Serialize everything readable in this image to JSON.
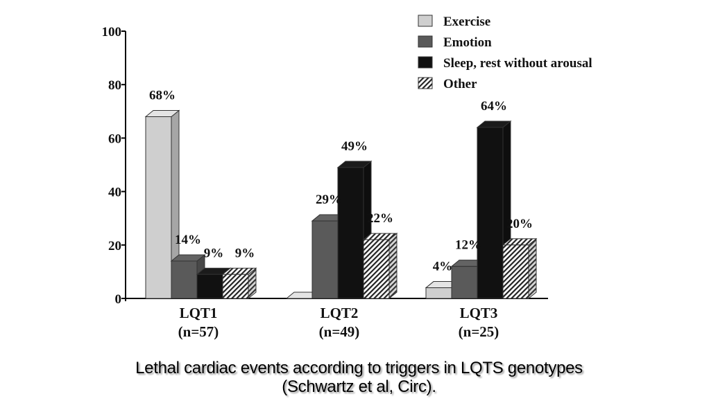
{
  "chart_data": {
    "type": "bar",
    "style": "3d-clustered",
    "title": "",
    "xlabel": "",
    "ylabel": "",
    "ylim": [
      0,
      100
    ],
    "yticks": [
      0,
      20,
      40,
      60,
      80,
      100
    ],
    "grid": false,
    "legend_position": "top-right",
    "categories": [
      {
        "name": "LQT1",
        "n_label": "(n=57)"
      },
      {
        "name": "LQT2",
        "n_label": "(n=49)"
      },
      {
        "name": "LQT3",
        "n_label": "(n=25)"
      }
    ],
    "series": [
      {
        "name": "Exercise",
        "values": [
          68,
          0,
          4
        ],
        "labels": [
          "68%",
          "",
          "4%"
        ],
        "color": "#cfcfcf",
        "pattern": "solid"
      },
      {
        "name": "Emotion",
        "values": [
          14,
          29,
          12
        ],
        "labels": [
          "14%",
          "29%",
          "12%"
        ],
        "color": "#5a5a5a",
        "pattern": "solid"
      },
      {
        "name": "Sleep, rest without arousal",
        "values": [
          9,
          49,
          64
        ],
        "labels": [
          "9%",
          "49%",
          "64%"
        ],
        "color": "#111111",
        "pattern": "solid"
      },
      {
        "name": "Other",
        "values": [
          9,
          22,
          20
        ],
        "labels": [
          "9%",
          "22%",
          "20%"
        ],
        "color": "#ffffff",
        "pattern": "diagonal-hatch"
      }
    ]
  },
  "caption": {
    "line1": "Lethal cardiac events according to triggers in LQTS genotypes",
    "line2": "(Schwartz et al, Circ)."
  }
}
